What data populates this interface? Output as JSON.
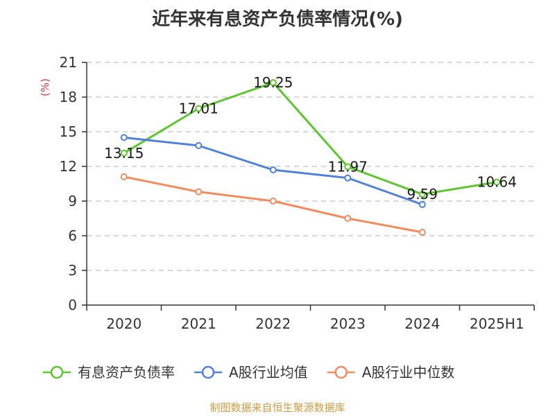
{
  "title": "近年来有息资产负债率情况(%)",
  "source": "制图数据来自恒生聚源数据库",
  "colors": {
    "series_green": "#5cc62c",
    "series_blue": "#4f81dd",
    "series_orange": "#f58a5a",
    "ylabel": "#e8343c",
    "source": "#d39a40",
    "axis": "#333333",
    "grid": "#cccccc"
  },
  "chart_data": {
    "type": "line",
    "title": "近年来有息资产负债率情况(%)",
    "ylabel": "(%)",
    "xlabel": "",
    "categories": [
      "2020",
      "2021",
      "2022",
      "2023",
      "2024",
      "2025H1"
    ],
    "ylim": [
      0,
      21
    ],
    "yticks": [
      0,
      3,
      6,
      9,
      12,
      15,
      18,
      21
    ],
    "grid": "horizontal dashed",
    "legend_position": "bottom",
    "series": [
      {
        "name": "有息资产负债率",
        "color_key": "series_green",
        "values": [
          13.15,
          17.01,
          19.25,
          11.97,
          9.59,
          10.64
        ],
        "labels": [
          "13.15",
          "17.01",
          "19.25",
          "11.97",
          "9.59",
          "10.64"
        ]
      },
      {
        "name": "A股行业均值",
        "color_key": "series_blue",
        "values": [
          14.5,
          13.8,
          11.7,
          11.0,
          8.7,
          null
        ]
      },
      {
        "name": "A股行业中位数",
        "color_key": "series_orange",
        "values": [
          11.1,
          9.8,
          9.0,
          7.5,
          6.3,
          null
        ]
      }
    ]
  }
}
